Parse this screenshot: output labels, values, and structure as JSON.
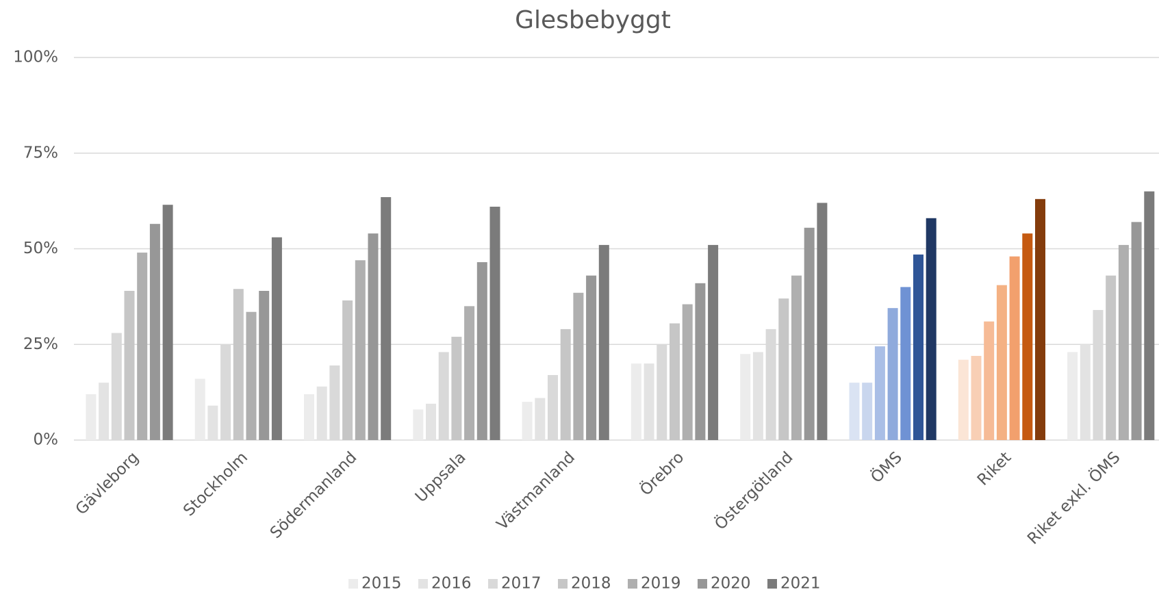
{
  "chart_data": {
    "type": "bar",
    "title": "Glesbebyggt",
    "categories": [
      "Gävleborg",
      "Stockholm",
      "Södermanland",
      "Uppsala",
      "Västmanland",
      "Örebro",
      "Östergötland",
      "ÖMS",
      "Riket",
      "Riket exkl. ÖMS"
    ],
    "ylim": [
      0,
      100
    ],
    "yticks": [
      {
        "value": 0,
        "label": "0%"
      },
      {
        "value": 25,
        "label": "25%"
      },
      {
        "value": 50,
        "label": "50%"
      },
      {
        "value": 75,
        "label": "75%"
      },
      {
        "value": 100,
        "label": "100%"
      }
    ],
    "grid": true,
    "legend": "bottom",
    "series": [
      {
        "name": "2015",
        "color": "#ececec",
        "values": [
          12,
          16,
          12,
          8,
          10,
          20,
          22.5,
          15,
          21,
          23
        ],
        "colors": [
          "#ececec",
          "#ececec",
          "#ececec",
          "#ececec",
          "#ececec",
          "#ececec",
          "#ececec",
          "#dae3f3",
          "#fbe5d6",
          "#ececec"
        ]
      },
      {
        "name": "2016",
        "color": "#e3e3e3",
        "values": [
          15,
          9,
          14,
          9.5,
          11,
          20,
          23,
          15,
          22,
          25
        ],
        "colors": [
          "#e3e3e3",
          "#e3e3e3",
          "#e3e3e3",
          "#e3e3e3",
          "#e3e3e3",
          "#e3e3e3",
          "#e3e3e3",
          "#c9d6ee",
          "#f8cfb5",
          "#e3e3e3"
        ]
      },
      {
        "name": "2017",
        "color": "#d9d9d9",
        "values": [
          28,
          25,
          19.5,
          23,
          17,
          25,
          29,
          24.5,
          31,
          34
        ],
        "colors": [
          "#d9d9d9",
          "#d9d9d9",
          "#d9d9d9",
          "#d9d9d9",
          "#d9d9d9",
          "#d9d9d9",
          "#d9d9d9",
          "#a9bee6",
          "#f6bb96",
          "#d9d9d9"
        ]
      },
      {
        "name": "2018",
        "color": "#c6c6c6",
        "values": [
          39,
          39.5,
          36.5,
          27,
          29,
          30.5,
          37,
          34.5,
          40.5,
          43
        ],
        "colors": [
          "#c6c6c6",
          "#c6c6c6",
          "#c6c6c6",
          "#c6c6c6",
          "#c6c6c6",
          "#c6c6c6",
          "#c6c6c6",
          "#8faadc",
          "#f4b183",
          "#c6c6c6"
        ]
      },
      {
        "name": "2019",
        "color": "#afafaf",
        "values": [
          49,
          33.5,
          47,
          35,
          38.5,
          35.5,
          43,
          40,
          48,
          51
        ],
        "colors": [
          "#afafaf",
          "#afafaf",
          "#afafaf",
          "#afafaf",
          "#afafaf",
          "#afafaf",
          "#afafaf",
          "#6f92d4",
          "#f2a06d",
          "#afafaf"
        ]
      },
      {
        "name": "2020",
        "color": "#979797",
        "values": [
          56.5,
          39,
          54,
          46.5,
          43,
          41,
          55.5,
          48.5,
          54,
          57
        ],
        "colors": [
          "#979797",
          "#979797",
          "#979797",
          "#979797",
          "#979797",
          "#979797",
          "#979797",
          "#2f5597",
          "#c55a11",
          "#979797"
        ]
      },
      {
        "name": "2021",
        "color": "#7b7b7b",
        "values": [
          61.5,
          53,
          63.5,
          61,
          51,
          51,
          62,
          58,
          63,
          65
        ],
        "colors": [
          "#7b7b7b",
          "#7b7b7b",
          "#7b7b7b",
          "#7b7b7b",
          "#7b7b7b",
          "#7b7b7b",
          "#7b7b7b",
          "#203864",
          "#843c0c",
          "#7b7b7b"
        ]
      }
    ]
  }
}
